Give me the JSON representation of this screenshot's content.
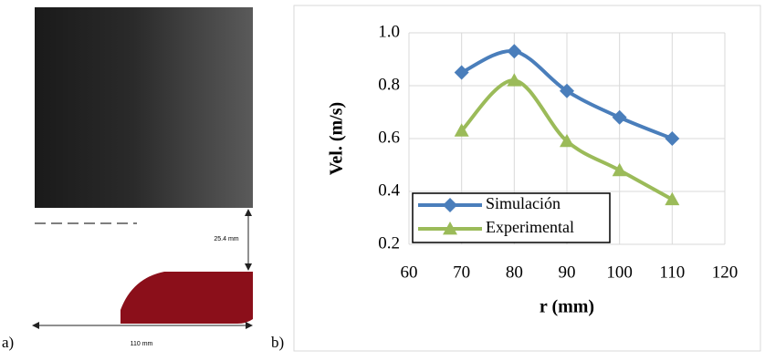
{
  "panel_a": {
    "label": "a)",
    "dimension_height": "25.4 mm",
    "dimension_width": "110 mm"
  },
  "chart_data": {
    "type": "line",
    "panel_label": "b)",
    "x_label": "r (mm)",
    "y_label": "Vel. (m/s)",
    "x": [
      70,
      80,
      90,
      100,
      110
    ],
    "series": [
      {
        "name": "Simulación",
        "color": "#4a7ebb",
        "marker": "diamond",
        "values": [
          0.85,
          0.93,
          0.78,
          0.68,
          0.6
        ]
      },
      {
        "name": "Experimental",
        "color": "#9bbb59",
        "marker": "triangle",
        "values": [
          0.63,
          0.82,
          0.59,
          0.48,
          0.37
        ]
      }
    ],
    "xlim": [
      60,
      120
    ],
    "xticks": [
      60,
      70,
      80,
      90,
      100,
      110,
      120
    ],
    "ylim": [
      0.2,
      1.0
    ],
    "yticks": [
      0.2,
      0.4,
      0.6,
      0.8,
      {
        "value": 1.0,
        "label": "1.0"
      }
    ],
    "grid": true,
    "legend": "lower left",
    "smooth": true
  }
}
